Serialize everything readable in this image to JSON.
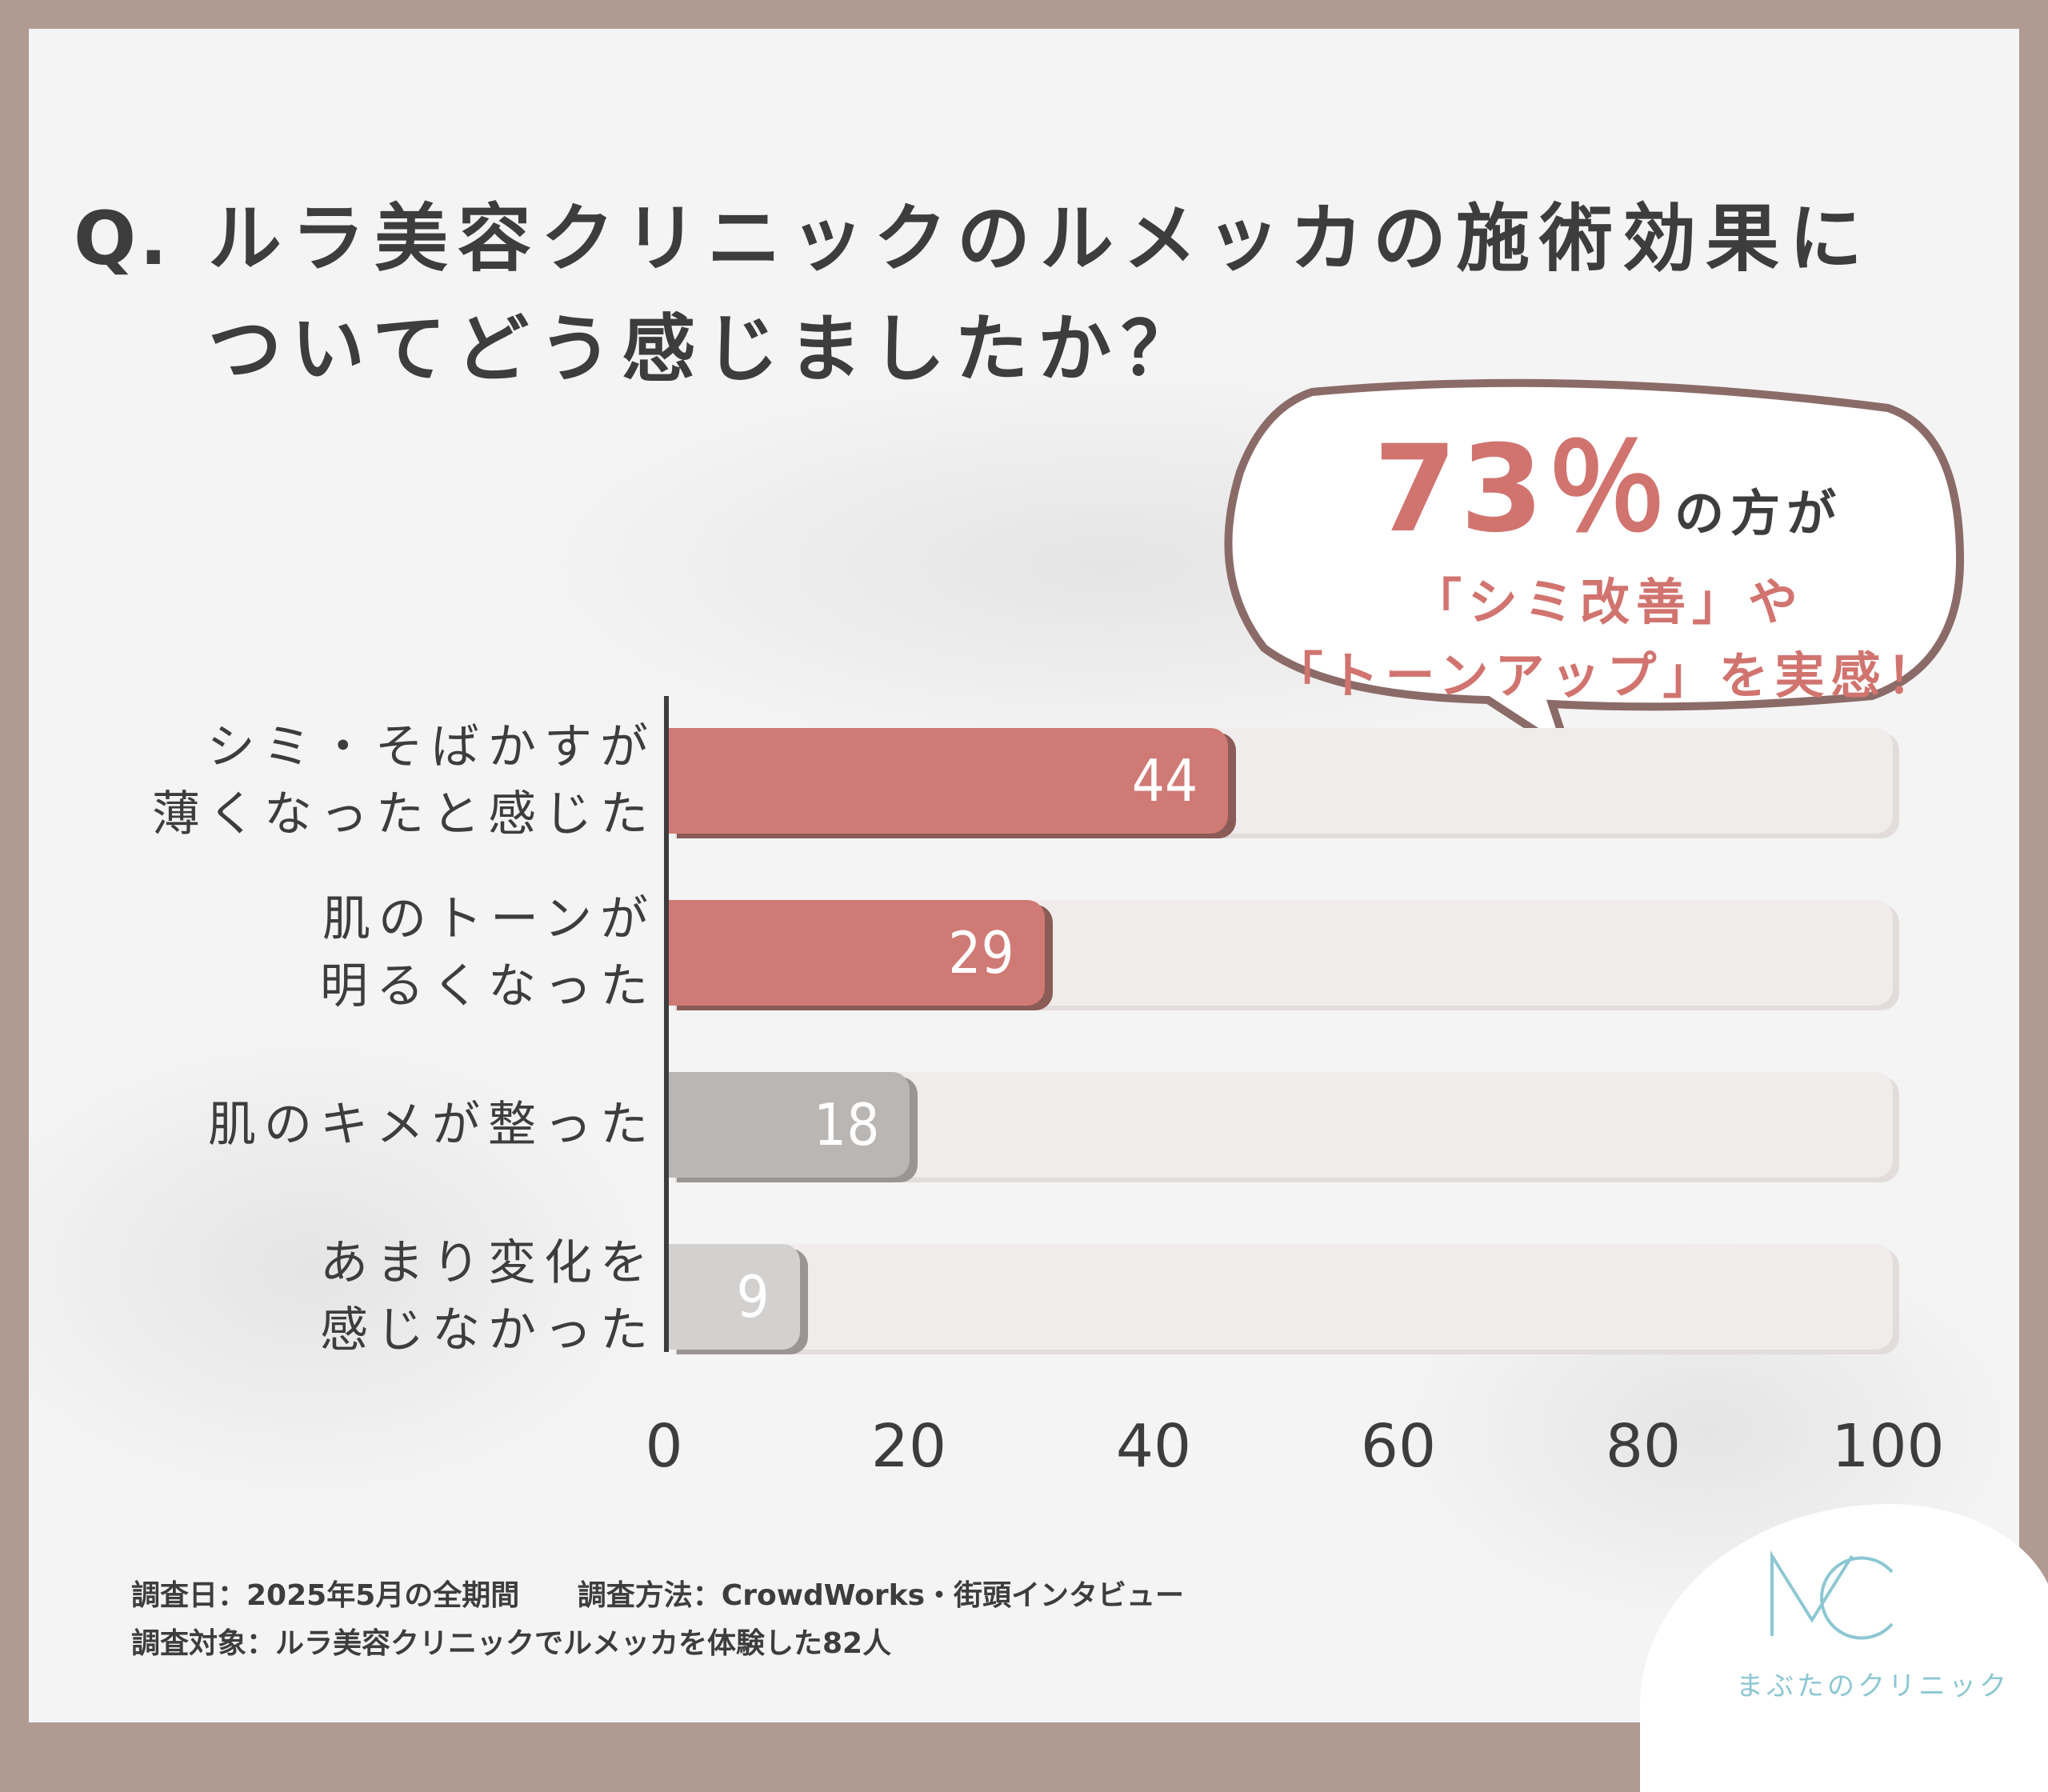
{
  "title": {
    "prefix": "Q.",
    "line1": "ルラ美容クリニックのルメッカの施術効果に",
    "line2": "ついてどう感じましたか？"
  },
  "callout": {
    "pct": "73％",
    "suffix": "の方が",
    "line2": "「シミ改善」や",
    "line3": "「トーンアップ」を実感！"
  },
  "chart_data": {
    "type": "bar",
    "orientation": "horizontal",
    "categories": [
      [
        "シミ・そばかすが",
        "薄くなったと感じた"
      ],
      [
        "肌のトーンが",
        "明るくなった"
      ],
      [
        "肌のキメが整った"
      ],
      [
        "あまり変化を",
        "感じなかった"
      ]
    ],
    "values": [
      44,
      29,
      18,
      9
    ],
    "value_labels": [
      "44",
      "29",
      "18",
      "9"
    ],
    "xlim": [
      0,
      100
    ],
    "xticks": [
      "0",
      "20",
      "40",
      "60",
      "80",
      "100"
    ],
    "colors": [
      "#d07a75",
      "#d07a75",
      "#b9b6b4",
      "#d3d1d0"
    ],
    "title": "ルラ美容クリニックのルメッカの施術効果についてどう感じましたか？"
  },
  "footer": {
    "date": "調査日：2025年5月の全期間",
    "method": "調査方法：CrowdWorks・街頭インタビュー",
    "target": "調査対象：ルラ美容クリニックでルメッカを体験した82人"
  },
  "logo": {
    "mark": "MC",
    "name": "まぶたのクリニック"
  },
  "colors": {
    "accent": "#d07a75",
    "frame": "#b09a91",
    "text": "#3d3d3d",
    "logo": "#8dc7d3"
  }
}
